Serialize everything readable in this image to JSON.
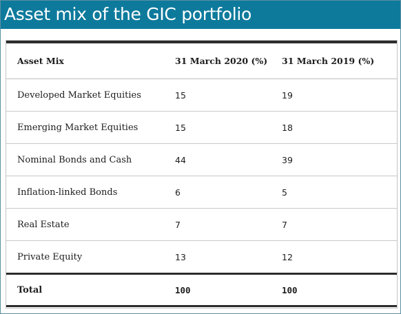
{
  "title": "Asset mix of the GIC portfolio",
  "table": {
    "headers": [
      "Asset Mix",
      "31 March 2020 (%)",
      "31 March 2019 (%)"
    ],
    "rows": [
      {
        "label": "Developed Market Equities",
        "v2020": "15",
        "v2019": "19"
      },
      {
        "label": "Emerging Market Equities",
        "v2020": "15",
        "v2019": "18"
      },
      {
        "label": "Nominal Bonds and Cash",
        "v2020": "44",
        "v2019": "39"
      },
      {
        "label": "Inflation-linked Bonds",
        "v2020": "6",
        "v2019": "5"
      },
      {
        "label": "Real Estate",
        "v2020": "7",
        "v2019": "7"
      },
      {
        "label": "Private Equity",
        "v2020": "13",
        "v2019": "12"
      }
    ],
    "total": {
      "label": "Total",
      "v2020": "100",
      "v2019": "100"
    }
  }
}
